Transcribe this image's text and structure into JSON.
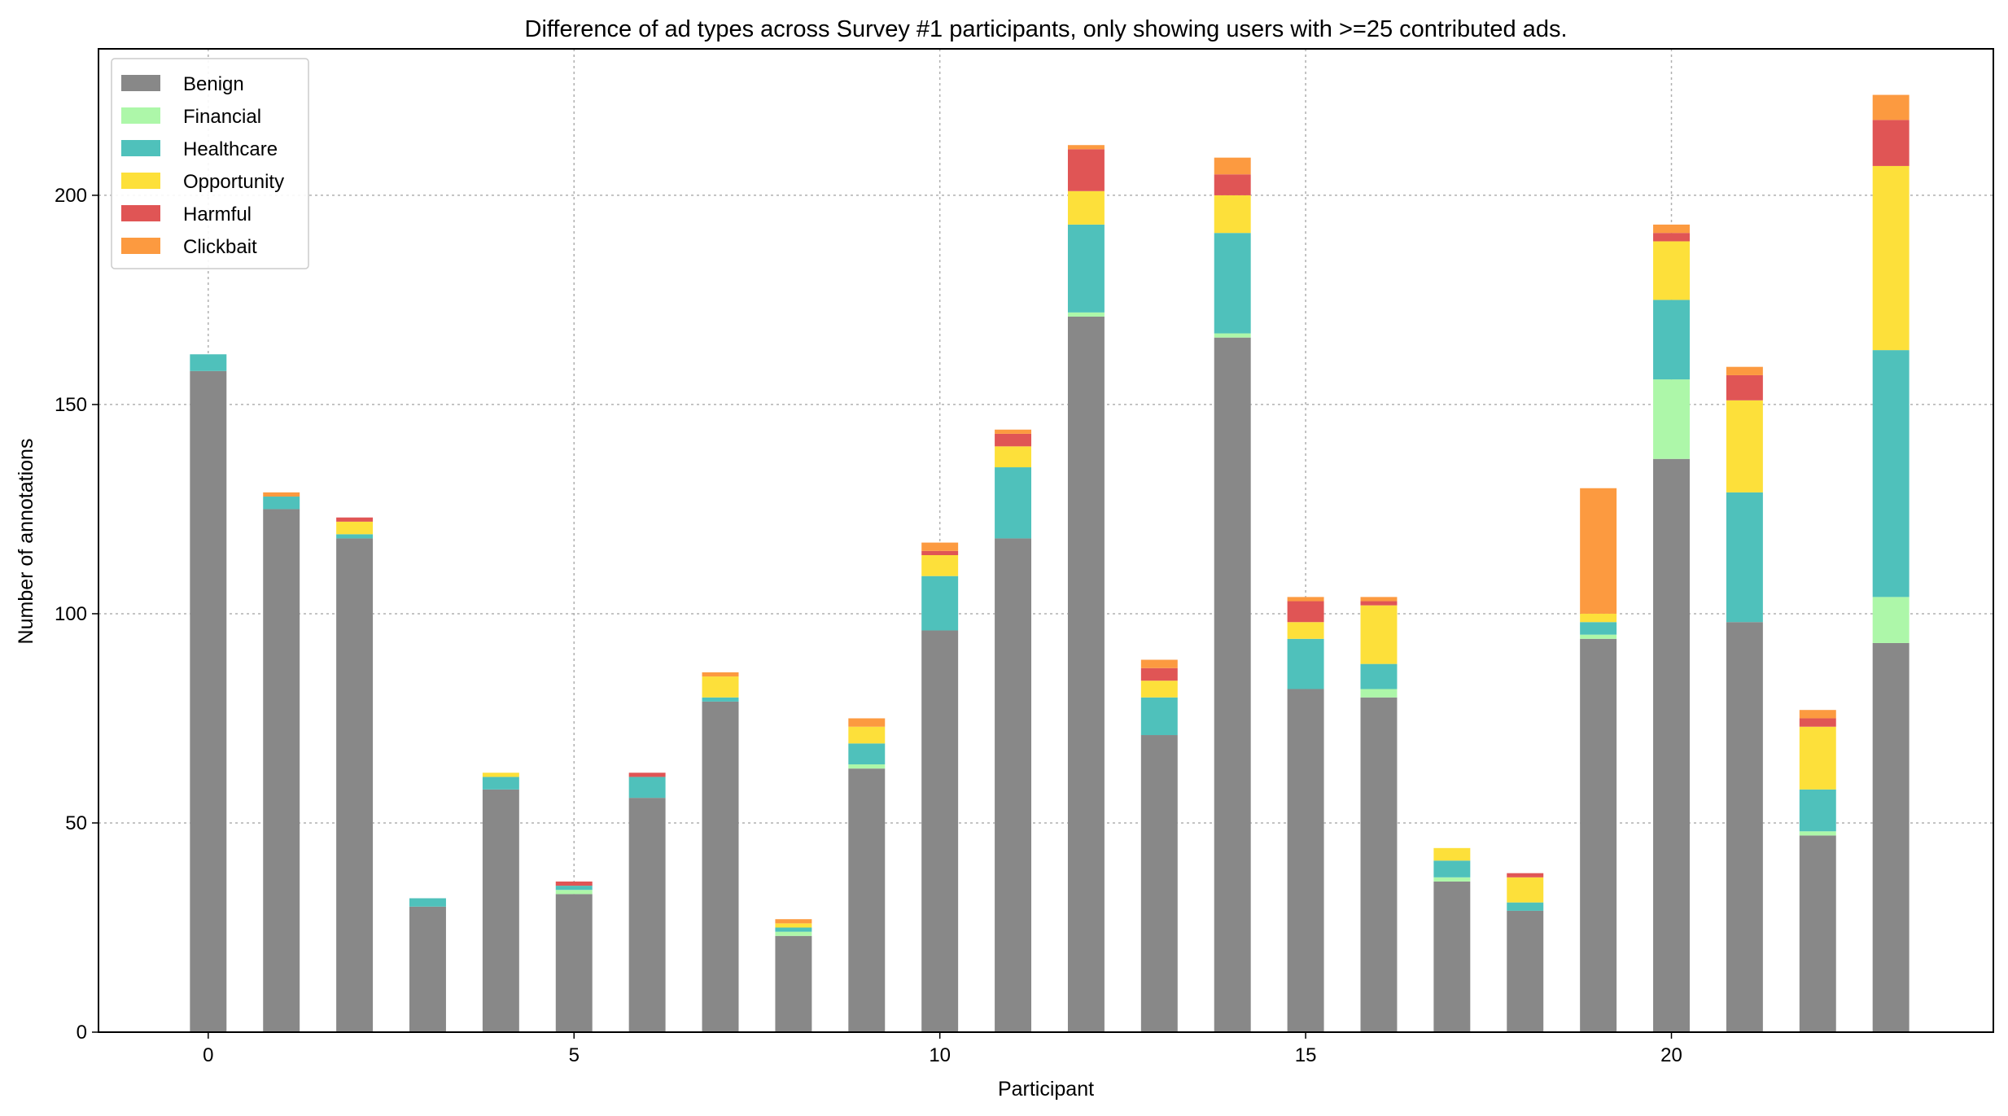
{
  "chart_data": {
    "type": "bar",
    "stacked": true,
    "title": "Difference of ad types across Survey #1 participants, only showing users with >=25 contributed ads.",
    "xlabel": "Participant",
    "ylabel": "Number of annotations",
    "xlim": [
      -1.5,
      24.4
    ],
    "ylim": [
      0,
      235
    ],
    "xticks": [
      0,
      5,
      10,
      15,
      20
    ],
    "yticks": [
      0,
      50,
      100,
      150,
      200
    ],
    "grid": true,
    "legend_position": "top-left",
    "x": [
      0,
      1,
      2,
      3,
      4,
      5,
      6,
      7,
      8,
      9,
      10,
      11,
      12,
      13,
      14,
      15,
      16,
      17,
      18,
      19,
      20,
      21,
      22,
      23
    ],
    "series": [
      {
        "name": "Benign",
        "color": "#888888",
        "values": [
          158,
          125,
          118,
          30,
          58,
          33,
          56,
          79,
          23,
          63,
          96,
          118,
          171,
          71,
          166,
          82,
          80,
          36,
          29,
          94,
          137,
          98,
          47,
          93
        ]
      },
      {
        "name": "Financial",
        "color": "#adf7a9",
        "values": [
          0,
          0,
          0,
          0,
          0,
          1,
          0,
          0,
          1,
          1,
          0,
          0,
          1,
          0,
          1,
          0,
          2,
          1,
          0,
          1,
          19,
          0,
          1,
          11
        ]
      },
      {
        "name": "Healthcare",
        "color": "#4fc1bb",
        "values": [
          4,
          3,
          1,
          2,
          3,
          1,
          5,
          1,
          1,
          5,
          13,
          17,
          21,
          9,
          24,
          12,
          6,
          4,
          2,
          3,
          19,
          31,
          10,
          59
        ]
      },
      {
        "name": "Opportunity",
        "color": "#fde03a",
        "values": [
          0,
          0,
          3,
          0,
          1,
          0,
          0,
          5,
          1,
          4,
          5,
          5,
          8,
          4,
          9,
          4,
          14,
          3,
          6,
          2,
          14,
          22,
          15,
          44
        ]
      },
      {
        "name": "Harmful",
        "color": "#e05555",
        "values": [
          0,
          0,
          1,
          0,
          0,
          1,
          1,
          0,
          0,
          0,
          1,
          3,
          10,
          3,
          5,
          5,
          1,
          0,
          1,
          0,
          2,
          6,
          2,
          11
        ]
      },
      {
        "name": "Clickbait",
        "color": "#fc9a40",
        "values": [
          0,
          1,
          0,
          0,
          0,
          0,
          0,
          1,
          1,
          2,
          2,
          1,
          1,
          2,
          4,
          1,
          1,
          0,
          0,
          30,
          2,
          2,
          2,
          6
        ]
      }
    ]
  }
}
